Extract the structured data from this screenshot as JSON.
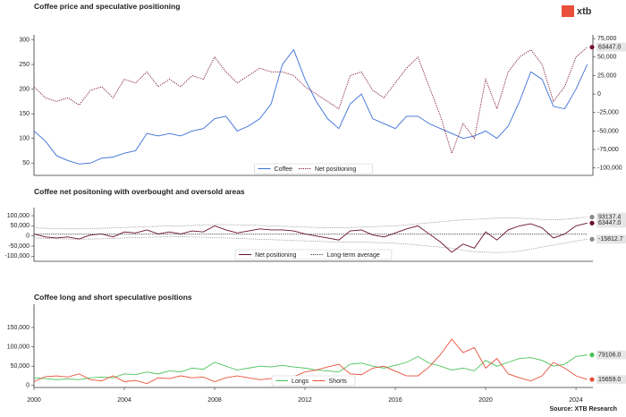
{
  "logo": "xtb",
  "source": "Source: XTB Research",
  "chart_data": [
    {
      "type": "line",
      "title": "Coffee price and speculative positioning",
      "x": [
        2000,
        2000.5,
        2001,
        2001.5,
        2002,
        2002.5,
        2003,
        2003.5,
        2004,
        2004.5,
        2005,
        2005.5,
        2006,
        2006.5,
        2007,
        2007.5,
        2008,
        2008.5,
        2009,
        2009.5,
        2010,
        2010.5,
        2011,
        2011.5,
        2012,
        2012.5,
        2013,
        2013.5,
        2014,
        2014.5,
        2015,
        2015.5,
        2016,
        2016.5,
        2017,
        2017.5,
        2018,
        2018.5,
        2019,
        2019.5,
        2020,
        2020.5,
        2021,
        2021.5,
        2022,
        2022.5,
        2023,
        2023.5,
        2024,
        2024.5
      ],
      "xlim": [
        2000,
        2024.75
      ],
      "ylim": [
        25,
        310
      ],
      "yticks": [
        50,
        100,
        150,
        200,
        250,
        300
      ],
      "y2lim": [
        -110000,
        80000
      ],
      "y2ticks": [
        {
          "value": 75000,
          "label": "75,000"
        },
        {
          "value": 50000,
          "label": "50,000"
        },
        {
          "value": 25000,
          "label": "25,000"
        },
        0,
        {
          "value": -25000,
          "label": "-25,000"
        },
        {
          "value": -50000,
          "label": "-50,000"
        },
        {
          "value": -75000,
          "label": "-75,000"
        },
        {
          "value": -100000,
          "label": "-100,000"
        }
      ],
      "legend": "lower center",
      "series": [
        {
          "name": "Coffee",
          "color": "#3a6fd8",
          "style": "solid",
          "values": [
            115,
            95,
            65,
            55,
            48,
            50,
            60,
            62,
            70,
            75,
            110,
            105,
            110,
            105,
            115,
            120,
            140,
            145,
            115,
            125,
            140,
            170,
            250,
            280,
            220,
            175,
            140,
            120,
            170,
            190,
            140,
            130,
            120,
            145,
            145,
            130,
            120,
            110,
            100,
            105,
            115,
            100,
            125,
            175,
            235,
            220,
            165,
            160,
            200,
            250
          ]
        },
        {
          "name": "Net positioning",
          "color": "#7a1030",
          "style": "dotted",
          "axis": "y2",
          "end_label": "63447.0",
          "values": [
            10000,
            -5000,
            -10000,
            -5000,
            -15000,
            5000,
            10000,
            -5000,
            20000,
            15000,
            30000,
            10000,
            20000,
            10000,
            25000,
            20000,
            50000,
            30000,
            15000,
            25000,
            35000,
            30000,
            30000,
            25000,
            10000,
            0,
            -10000,
            -20000,
            25000,
            30000,
            5000,
            -5000,
            15000,
            35000,
            50000,
            10000,
            -30000,
            -80000,
            -40000,
            -60000,
            20000,
            -20000,
            30000,
            50000,
            60000,
            40000,
            -10000,
            10000,
            50000,
            63447
          ]
        }
      ]
    },
    {
      "type": "line",
      "title": "Coffee net positoning with overbought and oversold areas",
      "x": [
        2000,
        2000.5,
        2001,
        2001.5,
        2002,
        2002.5,
        2003,
        2003.5,
        2004,
        2004.5,
        2005,
        2005.5,
        2006,
        2006.5,
        2007,
        2007.5,
        2008,
        2008.5,
        2009,
        2009.5,
        2010,
        2010.5,
        2011,
        2011.5,
        2012,
        2012.5,
        2013,
        2013.5,
        2014,
        2014.5,
        2015,
        2015.5,
        2016,
        2016.5,
        2017,
        2017.5,
        2018,
        2018.5,
        2019,
        2019.5,
        2020,
        2020.5,
        2021,
        2021.5,
        2022,
        2022.5,
        2023,
        2023.5,
        2024,
        2024.5
      ],
      "xlim": [
        2000,
        2024.75
      ],
      "ylim": [
        -125000,
        140000
      ],
      "yticks": [
        {
          "value": 100000,
          "label": "100,000"
        },
        {
          "value": 50000,
          "label": "50,000"
        },
        0,
        {
          "value": -50000,
          "label": "-50,000"
        },
        {
          "value": -100000,
          "label": "-100,000"
        }
      ],
      "legend": "lower center",
      "series": [
        {
          "name": "Net positioning",
          "color": "#6a0f2a",
          "style": "solid",
          "end_label": "63447.0",
          "values": [
            10000,
            -5000,
            -10000,
            -5000,
            -15000,
            5000,
            10000,
            -5000,
            20000,
            15000,
            30000,
            10000,
            20000,
            10000,
            25000,
            20000,
            50000,
            30000,
            15000,
            25000,
            35000,
            30000,
            30000,
            25000,
            10000,
            0,
            -10000,
            -20000,
            25000,
            30000,
            5000,
            -5000,
            15000,
            35000,
            50000,
            10000,
            -30000,
            -80000,
            -40000,
            -60000,
            20000,
            -20000,
            30000,
            50000,
            60000,
            40000,
            -10000,
            10000,
            50000,
            63447
          ]
        },
        {
          "name": "Long-term average",
          "color": "#333333",
          "style": "dotted",
          "values": [
            9000,
            9000,
            9000,
            9000,
            9000,
            9000,
            9000,
            9000,
            9000,
            9000,
            9000,
            9000,
            9000,
            9000,
            9000,
            9000,
            9000,
            9000,
            9000,
            9000,
            9000,
            9000,
            9000,
            9000,
            9000,
            9000,
            9000,
            9000,
            9000,
            9000,
            9000,
            9000,
            9000,
            9000,
            9000,
            9000,
            9000,
            9000,
            9000,
            9000,
            9000,
            9000,
            9000,
            9000,
            9000,
            9000,
            9000,
            9000,
            9000,
            9000
          ]
        }
      ],
      "bands": {
        "color": "#888888",
        "upper": {
          "end_label": "93137.4",
          "values": [
            40000,
            38000,
            36000,
            35000,
            35000,
            36000,
            38000,
            40000,
            42000,
            44000,
            46000,
            48000,
            50000,
            50000,
            52000,
            54000,
            56000,
            56000,
            55000,
            54000,
            52000,
            50000,
            48000,
            46000,
            44000,
            42000,
            40000,
            40000,
            42000,
            44000,
            46000,
            48000,
            50000,
            55000,
            60000,
            65000,
            70000,
            75000,
            80000,
            82000,
            85000,
            88000,
            90000,
            88000,
            85000,
            82000,
            80000,
            82000,
            88000,
            93137.4
          ]
        },
        "lower": {
          "end_label": "-15812.7",
          "values": [
            -10000,
            -12000,
            -14000,
            -15000,
            -16000,
            -15000,
            -14000,
            -12000,
            -10000,
            -8000,
            -6000,
            -5000,
            -4000,
            -4000,
            -5000,
            -6000,
            -8000,
            -10000,
            -12000,
            -14000,
            -16000,
            -18000,
            -20000,
            -22000,
            -24000,
            -26000,
            -28000,
            -30000,
            -30000,
            -30000,
            -32000,
            -34000,
            -36000,
            -40000,
            -45000,
            -50000,
            -55000,
            -60000,
            -70000,
            -78000,
            -80000,
            -82000,
            -80000,
            -75000,
            -65000,
            -55000,
            -45000,
            -35000,
            -25000,
            -15812.7
          ]
        }
      }
    },
    {
      "type": "line",
      "title": "Coffee long and short speculative positions",
      "x": [
        2000,
        2000.5,
        2001,
        2001.5,
        2002,
        2002.5,
        2003,
        2003.5,
        2004,
        2004.5,
        2005,
        2005.5,
        2006,
        2006.5,
        2007,
        2007.5,
        2008,
        2008.5,
        2009,
        2009.5,
        2010,
        2010.5,
        2011,
        2011.5,
        2012,
        2012.5,
        2013,
        2013.5,
        2014,
        2014.5,
        2015,
        2015.5,
        2016,
        2016.5,
        2017,
        2017.5,
        2018,
        2018.5,
        2019,
        2019.5,
        2020,
        2020.5,
        2021,
        2021.5,
        2022,
        2022.5,
        2023,
        2023.5,
        2024,
        2024.5
      ],
      "xlim": [
        2000,
        2024.75
      ],
      "xticks": [
        2000,
        2004,
        2008,
        2012,
        2016,
        2020,
        2024
      ],
      "ylim": [
        -5000,
        210000
      ],
      "yticks": [
        0,
        {
          "value": 50000,
          "label": "50,000"
        },
        {
          "value": 100000,
          "label": "100,000"
        },
        {
          "value": 150000,
          "label": "150,000"
        }
      ],
      "legend": "lower center",
      "series": [
        {
          "name": "Longs",
          "color": "#4cc35a",
          "style": "solid",
          "end_label": "79106.0",
          "values": [
            20000,
            18000,
            15000,
            17000,
            15000,
            20000,
            22000,
            20000,
            30000,
            28000,
            35000,
            30000,
            38000,
            35000,
            45000,
            42000,
            60000,
            50000,
            40000,
            45000,
            50000,
            48000,
            52000,
            48000,
            45000,
            40000,
            38000,
            35000,
            55000,
            58000,
            50000,
            45000,
            52000,
            60000,
            75000,
            58000,
            50000,
            40000,
            45000,
            38000,
            65000,
            50000,
            60000,
            70000,
            72000,
            65000,
            50000,
            55000,
            75000,
            79106
          ]
        },
        {
          "name": "Shorts",
          "color": "#e8503a",
          "style": "solid",
          "end_label": "15659.0",
          "values": [
            10000,
            23000,
            25000,
            22000,
            30000,
            15000,
            12000,
            25000,
            10000,
            13000,
            5000,
            20000,
            18000,
            25000,
            20000,
            22000,
            10000,
            20000,
            25000,
            20000,
            15000,
            18000,
            22000,
            23000,
            35000,
            40000,
            48000,
            55000,
            30000,
            28000,
            45000,
            50000,
            37000,
            25000,
            25000,
            48000,
            80000,
            120000,
            85000,
            98000,
            45000,
            70000,
            30000,
            20000,
            12000,
            25000,
            60000,
            45000,
            25000,
            15659
          ]
        }
      ]
    }
  ]
}
